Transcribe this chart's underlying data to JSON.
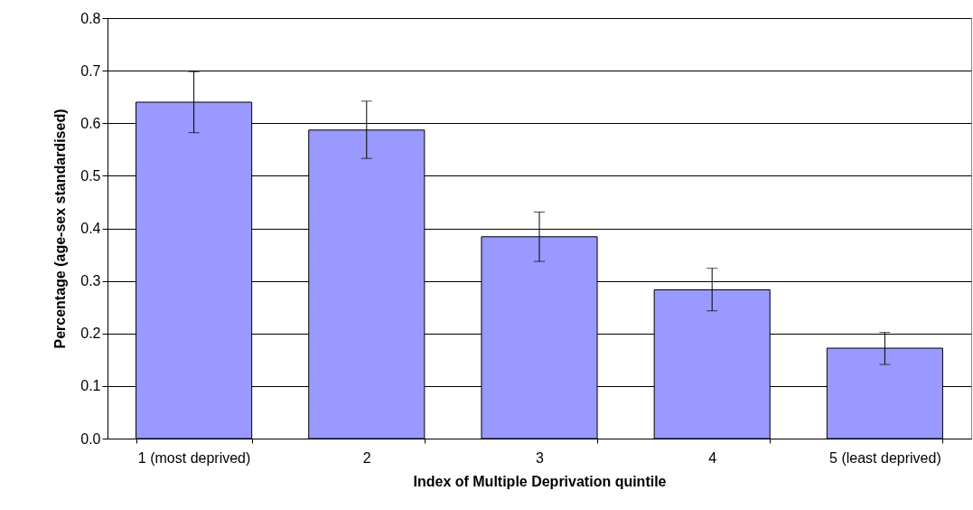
{
  "chart_data": {
    "type": "bar",
    "xlabel": "Index of Multiple Deprivation quintile",
    "ylabel": "Percentage (age-sex standardised)",
    "categories": [
      "1 (most deprived)",
      "2",
      "3",
      "4",
      "5 (least deprived)"
    ],
    "values": [
      0.64,
      0.587,
      0.384,
      0.283,
      0.172
    ],
    "errors": [
      [
        0.582,
        0.698
      ],
      [
        0.533,
        0.642
      ],
      [
        0.337,
        0.431
      ],
      [
        0.243,
        0.324
      ],
      [
        0.141,
        0.202
      ]
    ],
    "color": "#9999ff",
    "ylim": [
      0,
      0.8
    ],
    "yticks": [
      {
        "value": 0,
        "label": "0.0"
      },
      0.1,
      0.2,
      0.3,
      0.4,
      0.5,
      0.6,
      0.7,
      0.8
    ],
    "grid": "y"
  }
}
